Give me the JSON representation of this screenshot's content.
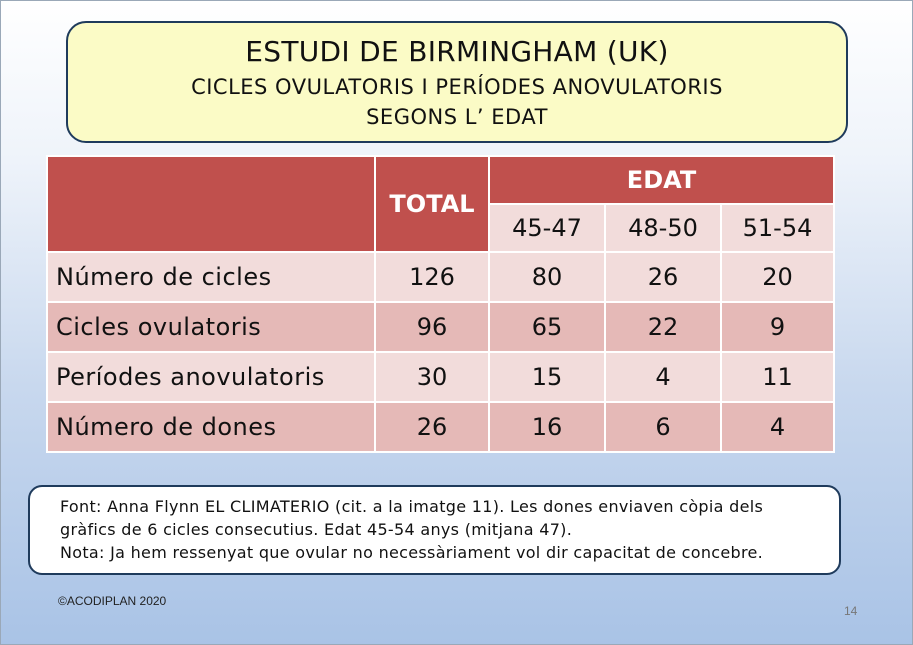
{
  "title": {
    "main": "ESTUDI DE BIRMINGHAM  (UK)",
    "line2": "CICLES OVULATORIS I PERÍODES ANOVULATORIS",
    "line3": "SEGONS L’ EDAT"
  },
  "table": {
    "total_header": "TOTAL",
    "edat_header": "EDAT",
    "age_groups": [
      "45-47",
      "48-50",
      "51-54"
    ],
    "rows": [
      {
        "label": "Número de cicles",
        "total": "126",
        "values": [
          "80",
          "26",
          "20"
        ]
      },
      {
        "label": "Cicles ovulatoris",
        "total": "96",
        "values": [
          "65",
          "22",
          "9"
        ]
      },
      {
        "label": "Períodes anovulatoris",
        "total": "30",
        "values": [
          "15",
          "4",
          "11"
        ]
      },
      {
        "label": "Número de dones",
        "total": "26",
        "values": [
          "16",
          "6",
          "4"
        ]
      }
    ]
  },
  "note": {
    "line1": "Font: Anna Flynn EL CLIMATERIO (cit. a la imatge 11). Les dones enviaven còpia dels",
    "line2": "gràfics de 6 cicles consecutius.  Edat 45-54 anys (mitjana 47).",
    "line3": "Nota:  Ja hem ressenyat que ovular no necessàriament vol dir capacitat de concebre."
  },
  "footer": {
    "copyright": "©ACODIPLAN 2020",
    "page_number": "14"
  },
  "colors": {
    "header_red": "#c0504d",
    "row_light": "#f2dcdb",
    "row_dark": "#e5b9b7",
    "title_bg": "#fbfbc6"
  }
}
